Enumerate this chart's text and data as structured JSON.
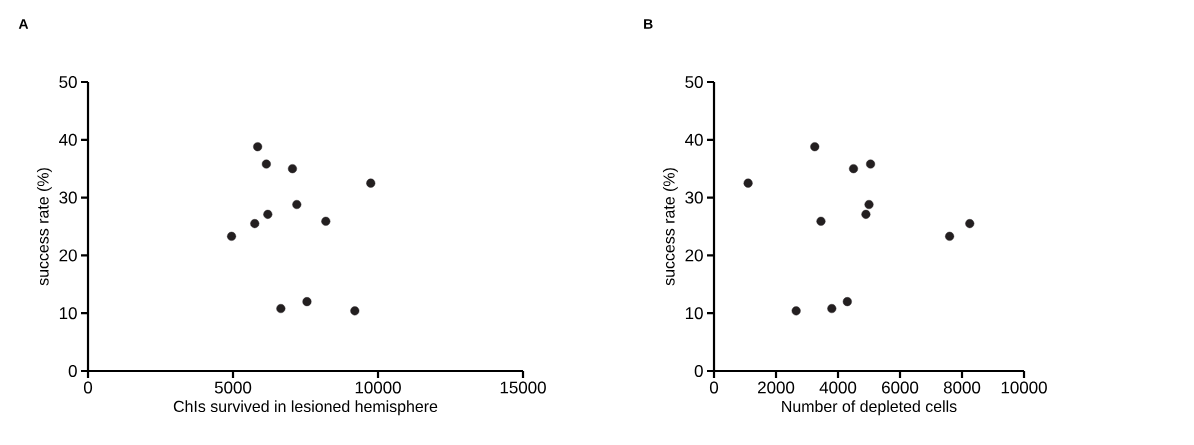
{
  "chart_data": [
    {
      "type": "scatter",
      "title": "A",
      "xlabel": "ChIs survived in lesioned hemisphere",
      "ylabel": "success rate (%)",
      "color": "#231f20",
      "grid": false,
      "x": [
        4950,
        5750,
        5850,
        6150,
        6200,
        6650,
        7050,
        7200,
        7550,
        8200,
        9200,
        9750
      ],
      "values": [
        23.3,
        25.5,
        38.8,
        35.8,
        27.1,
        10.8,
        35,
        28.8,
        12,
        25.9,
        10.4,
        32.5
      ],
      "xlim": [
        0,
        15000
      ],
      "xticks": [
        0,
        5000,
        10000,
        15000
      ],
      "ylim": [
        0,
        50
      ],
      "yticks": [
        0,
        10,
        20,
        30,
        40,
        50
      ]
    },
    {
      "type": "scatter",
      "title": "B",
      "xlabel": "Number of depleted cells",
      "ylabel": "success rate (%)",
      "color": "#231f20",
      "grid": false,
      "x": [
        1100,
        2650,
        3250,
        3450,
        3800,
        4300,
        4500,
        4900,
        5000,
        5050,
        7600,
        8250
      ],
      "values": [
        32.5,
        10.4,
        38.8,
        25.9,
        10.8,
        12,
        35,
        27.1,
        28.8,
        35.8,
        23.3,
        25.5
      ],
      "xlim": [
        0,
        10000
      ],
      "xticks": [
        0,
        2000,
        4000,
        6000,
        8000,
        10000
      ],
      "ylim": [
        0,
        50
      ],
      "yticks": [
        0,
        10,
        20,
        30,
        40,
        50
      ]
    }
  ]
}
